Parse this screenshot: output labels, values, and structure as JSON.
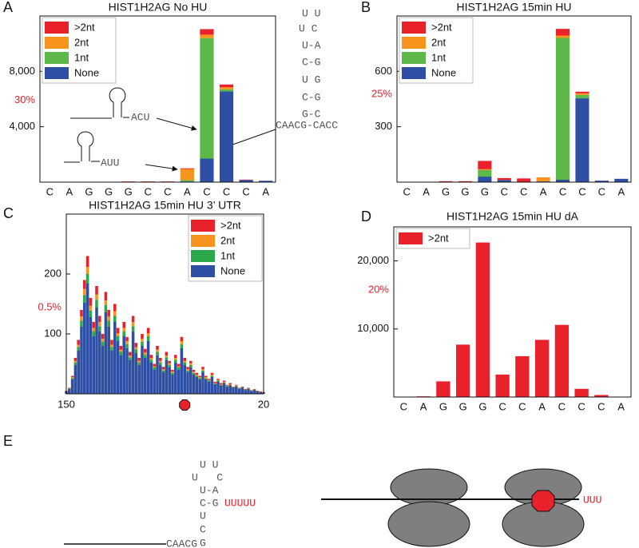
{
  "chart_data": [
    {
      "type": "bar",
      "panel": "A",
      "title": "HIST1H2AG No HU",
      "categories": [
        "C",
        "A",
        "G",
        "G",
        "G",
        "C",
        "C",
        "A",
        "C",
        "C",
        "C",
        "A"
      ],
      "series": [
        {
          "name": ">2nt",
          "color": "#e8212a",
          "values": [
            0,
            0,
            10,
            10,
            20,
            20,
            20,
            50,
            400,
            200,
            30,
            0
          ]
        },
        {
          "name": "2nt",
          "color": "#f7941d",
          "values": [
            0,
            0,
            0,
            0,
            10,
            10,
            10,
            800,
            250,
            150,
            0,
            0
          ]
        },
        {
          "name": "1nt",
          "color": "#5cb848",
          "values": [
            0,
            0,
            0,
            0,
            10,
            10,
            10,
            100,
            8700,
            150,
            0,
            0
          ]
        },
        {
          "name": "None",
          "color": "#2e4fa3",
          "values": [
            0,
            0,
            0,
            10,
            20,
            20,
            20,
            50,
            1700,
            6550,
            150,
            100
          ]
        }
      ],
      "ylim": [
        0,
        12000
      ],
      "yticks": [
        {
          "value": 4000,
          "label": "4,000"
        },
        {
          "value": 8000,
          "label": "8,000"
        }
      ],
      "percent_ticks": [
        {
          "value": 5900,
          "label": "30%"
        }
      ],
      "percent_color": "#e8212a",
      "legend": "upper left",
      "hairpin": [
        "U U",
        "U   C",
        "U-A",
        "C-G",
        "U G",
        "C-G",
        "G-C",
        "CAACG-CACC"
      ],
      "annotations": [
        "ACU",
        "AUU"
      ]
    },
    {
      "type": "bar",
      "panel": "B",
      "title": "HIST1H2AG 15min HU",
      "categories": [
        "C",
        "A",
        "G",
        "G",
        "G",
        "C",
        "C",
        "A",
        "C",
        "C",
        "C",
        "A"
      ],
      "series": [
        {
          "name": ">2nt",
          "color": "#e8212a",
          "values": [
            0,
            2,
            4,
            4,
            45,
            10,
            20,
            0,
            36,
            9,
            0,
            0
          ]
        },
        {
          "name": "2nt",
          "color": "#f7941d",
          "values": [
            0,
            0,
            0,
            0,
            5,
            0,
            0,
            22,
            13,
            9,
            0,
            0
          ]
        },
        {
          "name": "1nt",
          "color": "#5cb848",
          "values": [
            0,
            0,
            0,
            0,
            35,
            0,
            0,
            0,
            768,
            18,
            0,
            0
          ]
        },
        {
          "name": "None",
          "color": "#2e4fa3",
          "values": [
            0,
            0,
            1,
            1,
            30,
            12,
            0,
            4,
            13,
            454,
            8,
            18
          ]
        }
      ],
      "ylim": [
        0,
        900
      ],
      "yticks": [
        300,
        600
      ],
      "percent_ticks": [
        {
          "value": 476,
          "label": "25%"
        }
      ],
      "percent_color": "#e8212a",
      "legend": "upper left"
    },
    {
      "type": "bar",
      "panel": "C",
      "title": "HIST1H2AG 15min HU 3’ UTR",
      "x": [
        150,
        148,
        146,
        144,
        142,
        140,
        138,
        136,
        134,
        132,
        130,
        128,
        126,
        124,
        122,
        120,
        118,
        116,
        114,
        112,
        110,
        108,
        106,
        104,
        102,
        100,
        98,
        96,
        94,
        92,
        90,
        88,
        86,
        84,
        82,
        80,
        78,
        76,
        74,
        72,
        70,
        68,
        66,
        64,
        62,
        60,
        58,
        56,
        54,
        52,
        50,
        48,
        46,
        44,
        42,
        40,
        38,
        36,
        34,
        32,
        30,
        28,
        26,
        24,
        22,
        20
      ],
      "series": [
        {
          "name": ">2nt",
          "color": "#e8212a",
          "values": [
            1,
            1,
            2,
            5,
            8,
            11,
            15,
            18,
            13,
            10,
            14,
            10,
            8,
            14,
            11,
            8,
            12,
            9,
            6,
            10,
            7,
            6,
            10,
            7,
            5,
            8,
            6,
            9,
            5,
            4,
            6,
            5,
            4,
            6,
            4,
            3,
            5,
            4,
            7,
            5,
            4,
            4,
            3,
            3,
            2,
            4,
            2,
            2,
            3,
            2,
            2,
            2,
            2,
            1,
            2,
            1,
            1,
            1,
            1,
            1,
            1,
            1,
            1,
            1,
            1,
            1
          ]
        },
        {
          "name": "2nt",
          "color": "#f7941d",
          "values": [
            0,
            0,
            2,
            3,
            4,
            7,
            10,
            12,
            8,
            6,
            9,
            7,
            5,
            8,
            7,
            4,
            8,
            5,
            4,
            6,
            5,
            3,
            7,
            4,
            3,
            5,
            4,
            5,
            3,
            2,
            4,
            3,
            2,
            3,
            3,
            2,
            3,
            2,
            5,
            3,
            2,
            3,
            2,
            2,
            2,
            2,
            2,
            1,
            2,
            1,
            1,
            1,
            1,
            1,
            1,
            0,
            1,
            0,
            0,
            0,
            0,
            0,
            0,
            0,
            0,
            0
          ]
        },
        {
          "name": "1nt",
          "color": "#2aa84a",
          "values": [
            0,
            1,
            2,
            4,
            6,
            10,
            13,
            16,
            11,
            8,
            13,
            9,
            7,
            12,
            10,
            6,
            10,
            8,
            6,
            8,
            7,
            5,
            9,
            6,
            4,
            7,
            5,
            8,
            5,
            4,
            6,
            4,
            3,
            5,
            4,
            3,
            5,
            4,
            7,
            4,
            3,
            4,
            3,
            2,
            2,
            3,
            2,
            2,
            2,
            1,
            2,
            1,
            1,
            1,
            1,
            1,
            1,
            1,
            1,
            1,
            1,
            0,
            1,
            0,
            0,
            0
          ]
        },
        {
          "name": "None",
          "color": "#2e4fa3",
          "values": [
            4,
            8,
            24,
            48,
            72,
            112,
            152,
            184,
            128,
            96,
            144,
            104,
            80,
            136,
            112,
            72,
            120,
            88,
            64,
            96,
            76,
            56,
            104,
            68,
            48,
            80,
            60,
            88,
            52,
            40,
            64,
            48,
            36,
            56,
            44,
            32,
            52,
            40,
            76,
            48,
            36,
            44,
            32,
            28,
            24,
            36,
            24,
            20,
            28,
            16,
            20,
            14,
            18,
            12,
            14,
            10,
            12,
            8,
            10,
            6,
            8,
            5,
            6,
            4,
            3,
            2
          ]
        }
      ],
      "xlim": [
        150,
        20
      ],
      "xticks": [
        150,
        20
      ],
      "ylim": [
        0,
        300
      ],
      "yticks": [
        100,
        200
      ],
      "percent_ticks": [
        {
          "value": 144,
          "label": "0.5%"
        }
      ],
      "percent_color": "#e8212a",
      "marker_x": 72,
      "marker_color": "#e8212a",
      "legend": "upper right"
    },
    {
      "type": "bar",
      "panel": "D",
      "title": "HIST1H2AG 15min HU dA",
      "categories": [
        "C",
        "A",
        "G",
        "G",
        "G",
        "C",
        "C",
        "A",
        "C",
        "C",
        "C",
        "A"
      ],
      "series": [
        {
          "name": ">2nt",
          "color": "#e8212a",
          "values": [
            0,
            100,
            2300,
            7700,
            22700,
            3300,
            6000,
            8400,
            10600,
            1200,
            300,
            50
          ]
        }
      ],
      "ylim": [
        0,
        25000
      ],
      "yticks": [
        {
          "value": 10000,
          "label": "10,000"
        },
        {
          "value": 20000,
          "label": "20,000"
        }
      ],
      "percent_ticks": [
        {
          "value": 15700,
          "label": "20%"
        }
      ],
      "percent_color": "#e8212a",
      "legend": "upper left"
    }
  ],
  "panel_e": {
    "panel": "E",
    "hairpin": [
      "U U",
      "U   C",
      "U-A",
      "C-G",
      "U",
      "C",
      "G"
    ],
    "tail": "UUUUU",
    "leader": "CAACG",
    "ribosome_tail": "UUU"
  }
}
